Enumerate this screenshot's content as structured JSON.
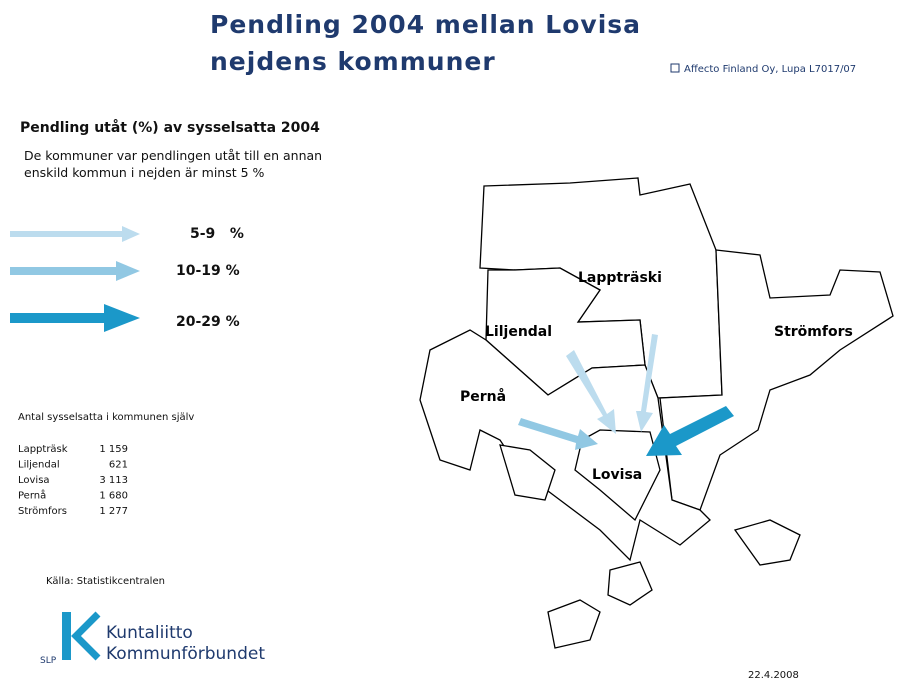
{
  "title": [
    "Pendling 2004 mellan Lovisa",
    "nejdens kommuner"
  ],
  "copyright": "Affecto Finland Oy, Lupa L7017/07",
  "heading": "Pendling utåt (%) av sysselsatta 2004",
  "description": [
    "De kommuner var pendlingen utåt till en annan",
    "enskild kommun i nejden är minst 5 %"
  ],
  "legend": [
    "5-9   %",
    "10-19 %",
    "20-29 %"
  ],
  "employment": {
    "title": "Antal sysselsatta i kommunen själv",
    "rows": [
      [
        "Lappträsk",
        "1 159"
      ],
      [
        "Liljendal",
        "621"
      ],
      [
        "Lovisa",
        "3 113"
      ],
      [
        "Pernå",
        "1 680"
      ],
      [
        "Strömfors",
        "1 277"
      ]
    ]
  },
  "source": "Källa: Statistikcentralen",
  "logo": {
    "mark": "SLP",
    "lines": [
      "Kuntaliitto",
      "Kommunförbundet"
    ]
  },
  "date": "22.4.2008",
  "municipalities": [
    "Lappträski",
    "Liljendal",
    "Strömfors",
    "Pernå",
    "Lovisa"
  ]
}
